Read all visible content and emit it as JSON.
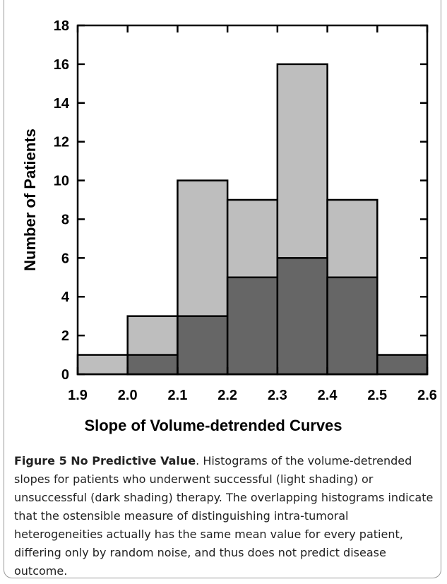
{
  "chart_data": {
    "type": "histogram",
    "xlabel": "Slope of Volume-detrended Curves",
    "ylabel": "Number of Patients",
    "bins": [
      1.9,
      2.0,
      2.1,
      2.2,
      2.3,
      2.4,
      2.5,
      2.6
    ],
    "series": [
      {
        "color": "#bebebe",
        "values": [
          1,
          3,
          10,
          9,
          16,
          9,
          0
        ]
      },
      {
        "color": "#666666",
        "values": [
          0,
          1,
          3,
          5,
          6,
          5,
          1
        ]
      }
    ],
    "xlim": [
      1.9,
      2.6
    ],
    "xticks": [
      1.9,
      {
        "value": 2.0,
        "label": "2.0"
      },
      2.1,
      2.2,
      2.3,
      2.4,
      2.5,
      2.6
    ],
    "ylim": [
      0,
      18
    ],
    "yticks": [
      0,
      2,
      4,
      6,
      8,
      10,
      12,
      14,
      16,
      18
    ]
  },
  "caption": {
    "title": "Figure 5 No Predictive Value",
    "text": ". Histograms of the volume-detrended slopes for patients who underwent successful (light shading) or unsuccessful (dark shading) therapy. The overlapping histograms indicate that the ostensible measure of distinguishing intra-tumoral heterogeneities actually has the same mean value for every patient, differing only by random noise, and thus does not predict disease outcome."
  }
}
